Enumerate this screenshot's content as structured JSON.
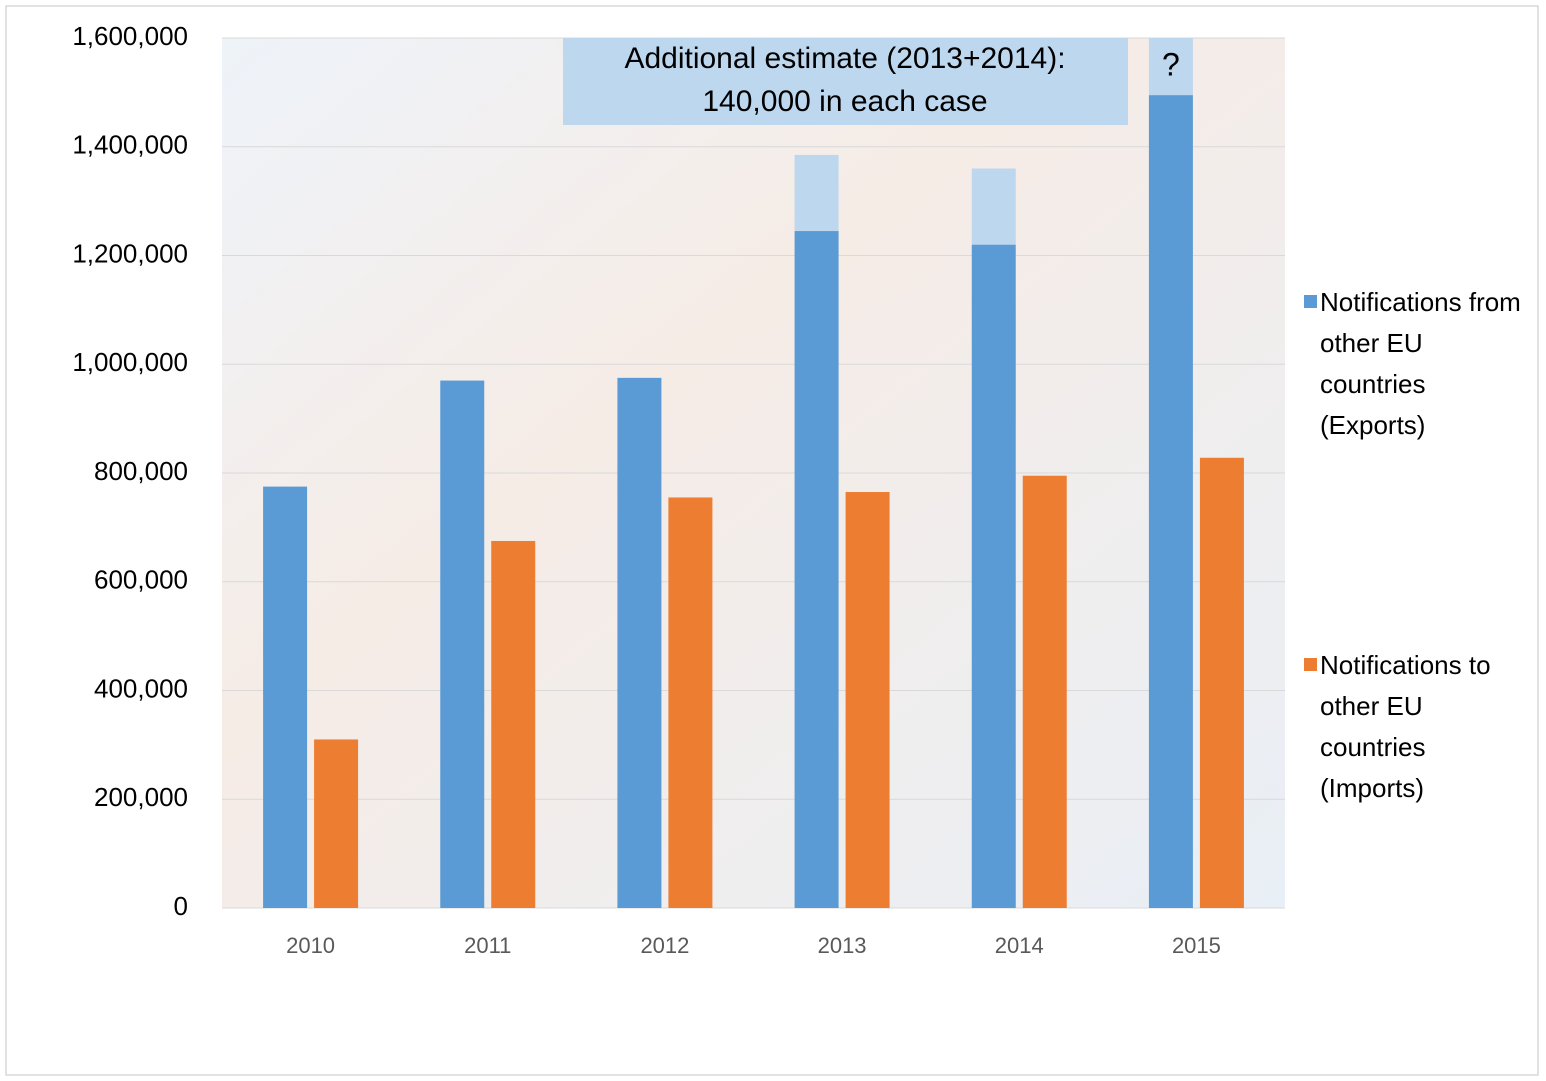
{
  "chart_data": {
    "type": "bar",
    "categories": [
      "2010",
      "2011",
      "2012",
      "2013",
      "2014",
      "2015"
    ],
    "series": [
      {
        "name": "Notifications from other EU countries (Exports)",
        "color": "#5b9bd5",
        "values": [
          775000,
          970000,
          975000,
          1245000,
          1220000,
          1495000
        ]
      },
      {
        "name": "Notifications to other EU countries (Imports)",
        "color": "#ed7d31",
        "values": [
          310000,
          675000,
          755000,
          765000,
          795000,
          828000
        ]
      }
    ],
    "estimate": {
      "color": "#bdd7ee",
      "values": [
        null,
        null,
        null,
        140000,
        140000,
        null
      ]
    },
    "annotations": [
      [
        "Additional estimate (2013+2014):",
        "140,000 in each case"
      ],
      "?"
    ],
    "ylim": [
      0,
      1600000
    ],
    "yticks": [
      {
        "value": 0,
        "label": "0"
      },
      {
        "value": 200000,
        "label": "200,000"
      },
      {
        "value": 400000,
        "label": "400,000"
      },
      {
        "value": 600000,
        "label": "600,000"
      },
      {
        "value": 800000,
        "label": "800,000"
      },
      {
        "value": 1000000,
        "label": "1,000,000"
      },
      {
        "value": 1200000,
        "label": "1,200,000"
      },
      {
        "value": 1400000,
        "label": "1,400,000"
      },
      {
        "value": 1600000,
        "label": "1,600,000"
      }
    ],
    "grid": true,
    "legend": "right"
  }
}
